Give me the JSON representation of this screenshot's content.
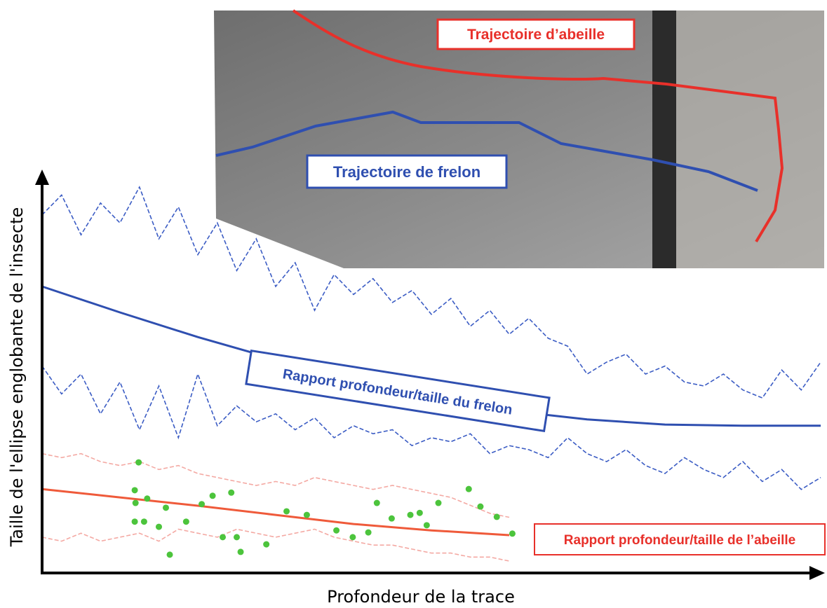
{
  "chart_data": {
    "type": "line",
    "x_label": "Profondeur de la trace",
    "y_label": "Taille de l'ellipse englobante de l'insecte",
    "xlim": [
      0,
      100
    ],
    "ylim": [
      0,
      100
    ],
    "grid": false,
    "annotations": [
      {
        "text": "Trajectoire d’abeille",
        "color": "#e8302a"
      },
      {
        "text": "Trajectoire de frelon",
        "color": "#2f4fb0"
      },
      {
        "text": "Rapport profondeur/taille du frelon",
        "color": "#2f4fb0"
      },
      {
        "text": "Rapport profondeur/taille de l’abeille",
        "color": "#e8302a"
      }
    ],
    "series": [
      {
        "type": "line",
        "style": "dashed",
        "color": "#3b5cc4",
        "x": [
          0,
          2.5,
          5,
          7.5,
          10,
          12.5,
          15,
          17.5,
          20,
          22.5,
          25,
          27.5,
          30,
          32.5,
          35,
          37.5,
          40,
          42.5,
          45,
          47.5,
          50,
          52.5,
          55,
          57.5,
          60,
          62.5,
          65,
          67.5,
          70,
          72.5,
          75,
          77.5,
          80,
          82.5,
          85,
          87.5,
          90,
          92.5,
          95,
          97.5,
          100
        ],
        "values": [
          90,
          95,
          85,
          93,
          88,
          97,
          84,
          92,
          80,
          88,
          76,
          84,
          72,
          78,
          66,
          75,
          70,
          74,
          68,
          71,
          65,
          69,
          62,
          66,
          60,
          64,
          59,
          57,
          50,
          53,
          55,
          50,
          52,
          48,
          47,
          50,
          46,
          44,
          51,
          46,
          53
        ]
      },
      {
        "type": "line",
        "style": "dashed",
        "color": "#3b5cc4",
        "x": [
          0,
          2.5,
          5,
          7.5,
          10,
          12.5,
          15,
          17.5,
          20,
          22.5,
          25,
          27.5,
          30,
          32.5,
          35,
          37.5,
          40,
          42.5,
          45,
          47.5,
          50,
          52.5,
          55,
          57.5,
          60,
          62.5,
          65,
          67.5,
          70,
          72.5,
          75,
          77.5,
          80,
          82.5,
          85,
          87.5,
          90,
          92.5,
          95,
          97.5,
          100
        ],
        "values": [
          52,
          45,
          50,
          40,
          48,
          36,
          47,
          34,
          50,
          37,
          42,
          38,
          40,
          36,
          39,
          34,
          37,
          35,
          36,
          32,
          34,
          33,
          35,
          30,
          32,
          31,
          29,
          34,
          30,
          28,
          31,
          27,
          25,
          29,
          26,
          24,
          28,
          23,
          26,
          21,
          24
        ]
      },
      {
        "type": "line",
        "style": "solid",
        "color": "#2f4fb0",
        "x": [
          0,
          10,
          20,
          30,
          40,
          50,
          60,
          70,
          80,
          90,
          100
        ],
        "values": [
          72,
          65.5,
          59.3,
          53.7,
          48.8,
          44.4,
          40.8,
          38.6,
          37.3,
          37,
          37
        ]
      },
      {
        "type": "line",
        "style": "dashed",
        "color": "#f4a9a3",
        "x": [
          0,
          2.5,
          5,
          7.5,
          10,
          12.5,
          15,
          17.5,
          20,
          22.5,
          25,
          27.5,
          30,
          32.5,
          35,
          37.5,
          40,
          42.5,
          45,
          47.5,
          50,
          52.5,
          55,
          57.5,
          60
        ],
        "values": [
          30,
          29,
          30,
          28,
          27,
          28,
          26,
          27,
          25,
          24,
          23,
          22,
          23,
          22,
          24,
          23,
          22,
          21,
          22,
          21,
          20,
          19,
          17,
          15,
          14
        ]
      },
      {
        "type": "line",
        "style": "dashed",
        "color": "#f4a9a3",
        "x": [
          0,
          2.5,
          5,
          7.5,
          10,
          12.5,
          15,
          17.5,
          20,
          22.5,
          25,
          27.5,
          30,
          32.5,
          35,
          37.5,
          40,
          42.5,
          45,
          47.5,
          50,
          52.5,
          55,
          57.5,
          60
        ],
        "values": [
          9,
          8,
          10,
          8,
          9,
          10,
          8,
          11,
          10,
          9,
          11,
          10,
          9,
          10,
          11,
          9,
          8,
          7,
          7,
          6,
          5,
          5,
          4,
          4,
          3
        ]
      },
      {
        "type": "line",
        "style": "solid",
        "color": "#ef5a3a",
        "x": [
          0,
          10,
          20,
          30,
          40,
          50,
          60
        ],
        "values": [
          21.1,
          19,
          16.9,
          14.6,
          12.3,
          10.7,
          9.5
        ]
      },
      {
        "type": "scatter",
        "color": "#4cc43c",
        "x": [
          12.4,
          11.9,
          13.5,
          12,
          15.9,
          11.9,
          13.1,
          15,
          18.5,
          16.4,
          20.5,
          21.9,
          24.3,
          23.2,
          25,
          25.5,
          28.8,
          31.4,
          34,
          37.8,
          39.9,
          41.9,
          43,
          44.9,
          47.3,
          48.5,
          49.4,
          50.9,
          54.8,
          56.3,
          58.4,
          60.4
        ],
        "values": [
          27.8,
          20.8,
          18.7,
          17.6,
          16.4,
          12.9,
          12.9,
          11.6,
          12.9,
          4.6,
          17.3,
          19.4,
          20.2,
          9,
          9,
          5.3,
          7.2,
          15.5,
          14.6,
          10.7,
          9,
          10.2,
          17.6,
          13.7,
          14.6,
          15.1,
          12,
          17.6,
          21.1,
          16.7,
          14.1,
          9.9
        ]
      }
    ]
  }
}
